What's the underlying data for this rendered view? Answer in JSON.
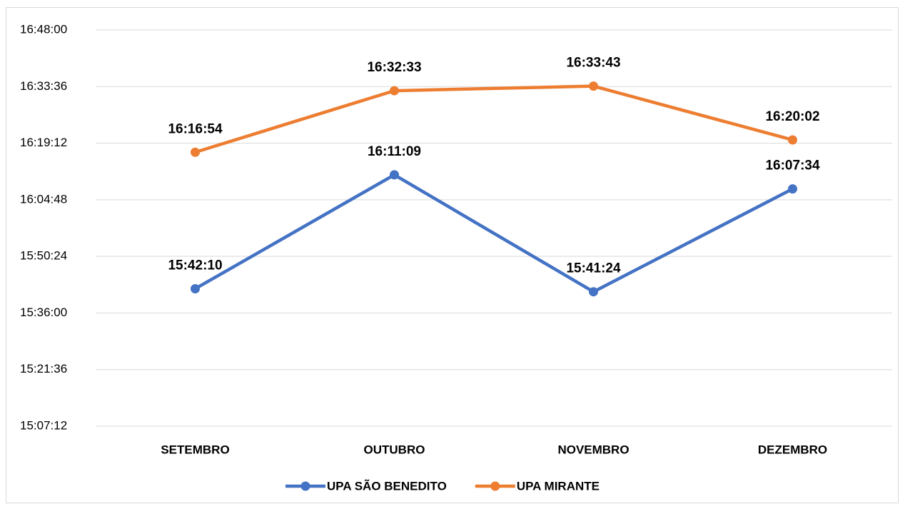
{
  "chart_data": {
    "type": "line",
    "categories": [
      "SETEMBRO",
      "OUTUBRO",
      "NOVEMBRO",
      "DEZEMBRO"
    ],
    "series": [
      {
        "name": "UPA SÃO BENEDITO",
        "color": "#4472c4",
        "values": [
          56530,
          58269,
          56484,
          58054
        ],
        "value_labels": [
          "15:42:10",
          "16:11:09",
          "15:41:24",
          "16:07:34"
        ]
      },
      {
        "name": "UPA MIRANTE",
        "color": "#ed7d31",
        "values": [
          58614,
          59553,
          59623,
          58802
        ],
        "value_labels": [
          "16:16:54",
          "16:32:33",
          "16:33:43",
          "16:20:02"
        ]
      }
    ],
    "ylim": [
      54432,
      60480
    ],
    "yticks": [
      {
        "value": 54432,
        "label": "15:07:12"
      },
      {
        "value": 55296,
        "label": "15:21:36"
      },
      {
        "value": 56160,
        "label": "15:36:00"
      },
      {
        "value": 57024,
        "label": "15:50:24"
      },
      {
        "value": 57888,
        "label": "16:04:48"
      },
      {
        "value": 58752,
        "label": "16:19:12"
      },
      {
        "value": 59616,
        "label": "16:33:36"
      },
      {
        "value": 60480,
        "label": "16:48:00"
      }
    ],
    "grid": true,
    "legend": "bottom"
  }
}
